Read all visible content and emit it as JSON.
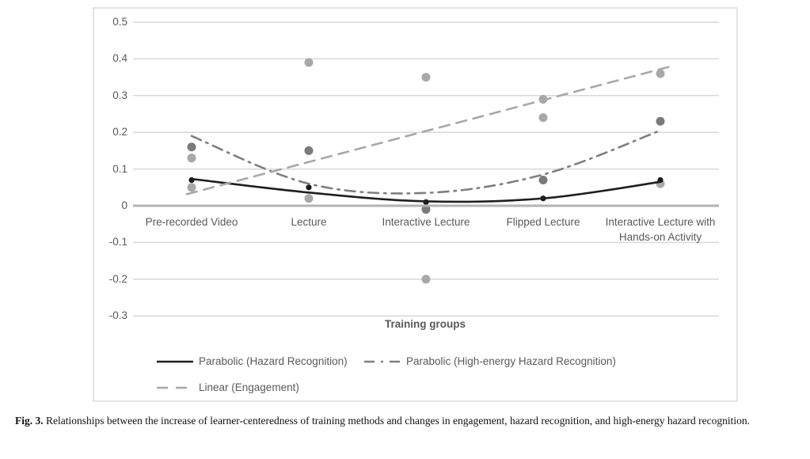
{
  "figure": {
    "caption_label": "Fig. 3.",
    "caption_text": " Relationships between the increase of learner-centeredness of training methods and changes in engagement, hazard recognition, and high-energy hazard recognition."
  },
  "chart_data": {
    "type": "scatter",
    "title": "",
    "xlabel": "Training groups",
    "ylabel": "",
    "ylim": [
      -0.3,
      0.5
    ],
    "grid": true,
    "legend_position": "bottom",
    "yticks": [
      "0.5",
      "0.4",
      "0.3",
      "0.2",
      "0.1",
      "0",
      "-0.1",
      "-0.2",
      "-0.3"
    ],
    "categories": [
      "Pre-recorded Video",
      "Lecture",
      "Interactive Lecture",
      "Flipped Lecture",
      "Interactive Lecture with Hands-on Activity"
    ],
    "series": [
      {
        "name": "Engagement",
        "marker_color": "#a8a8a8",
        "marker_radius": 5.5,
        "values_per_category": [
          [
            0.13,
            0.05
          ],
          [
            0.39,
            0.02
          ],
          [
            0.35,
            -0.2
          ],
          [
            0.29,
            0.24
          ],
          [
            0.36,
            0.06
          ]
        ]
      },
      {
        "name": "High-energy Hazard Recognition",
        "marker_color": "#7a7a7a",
        "marker_radius": 5.5,
        "values_per_category": [
          [
            0.16
          ],
          [
            0.15
          ],
          [
            -0.01
          ],
          [
            0.07
          ],
          [
            0.23
          ]
        ]
      },
      {
        "name": "Hazard Recognition",
        "marker_color": "#1a1a1a",
        "marker_radius": 3.6,
        "values_per_category": [
          [
            0.07
          ],
          [
            0.05
          ],
          [
            0.01
          ],
          [
            0.02
          ],
          [
            0.07
          ]
        ]
      }
    ],
    "trendlines": [
      {
        "label": "Parabolic (Hazard Recognition)",
        "style": "solid",
        "shape": "curve",
        "color": "#1f1f1f",
        "points": [
          0.073,
          0.036,
          0.012,
          0.02,
          0.065
        ]
      },
      {
        "label": "Parabolic (High-energy Hazard Recognition)",
        "style": "dashdot",
        "shape": "curve",
        "color": "#7f7f7f",
        "points": [
          0.19,
          0.06,
          0.035,
          0.085,
          0.205
        ]
      },
      {
        "label": "Linear (Engagement)",
        "style": "dashed",
        "shape": "line",
        "color": "#a8a8a8",
        "points": [
          0.035,
          0.12,
          0.205,
          0.29,
          0.372
        ]
      }
    ],
    "colors": {
      "grid": "#d9d9d9",
      "zero_axis": "#b3b3b3",
      "axis_text": "#595959"
    }
  },
  "legend": {
    "items": [
      {
        "label": "Parabolic (Hazard Recognition)",
        "style": "solid",
        "color": "#1f1f1f"
      },
      {
        "label": "Parabolic (High-energy Hazard Recognition)",
        "style": "dashdot",
        "color": "#7f7f7f"
      },
      {
        "label": "Linear (Engagement)",
        "style": "dashed",
        "color": "#a8a8a8"
      }
    ]
  }
}
